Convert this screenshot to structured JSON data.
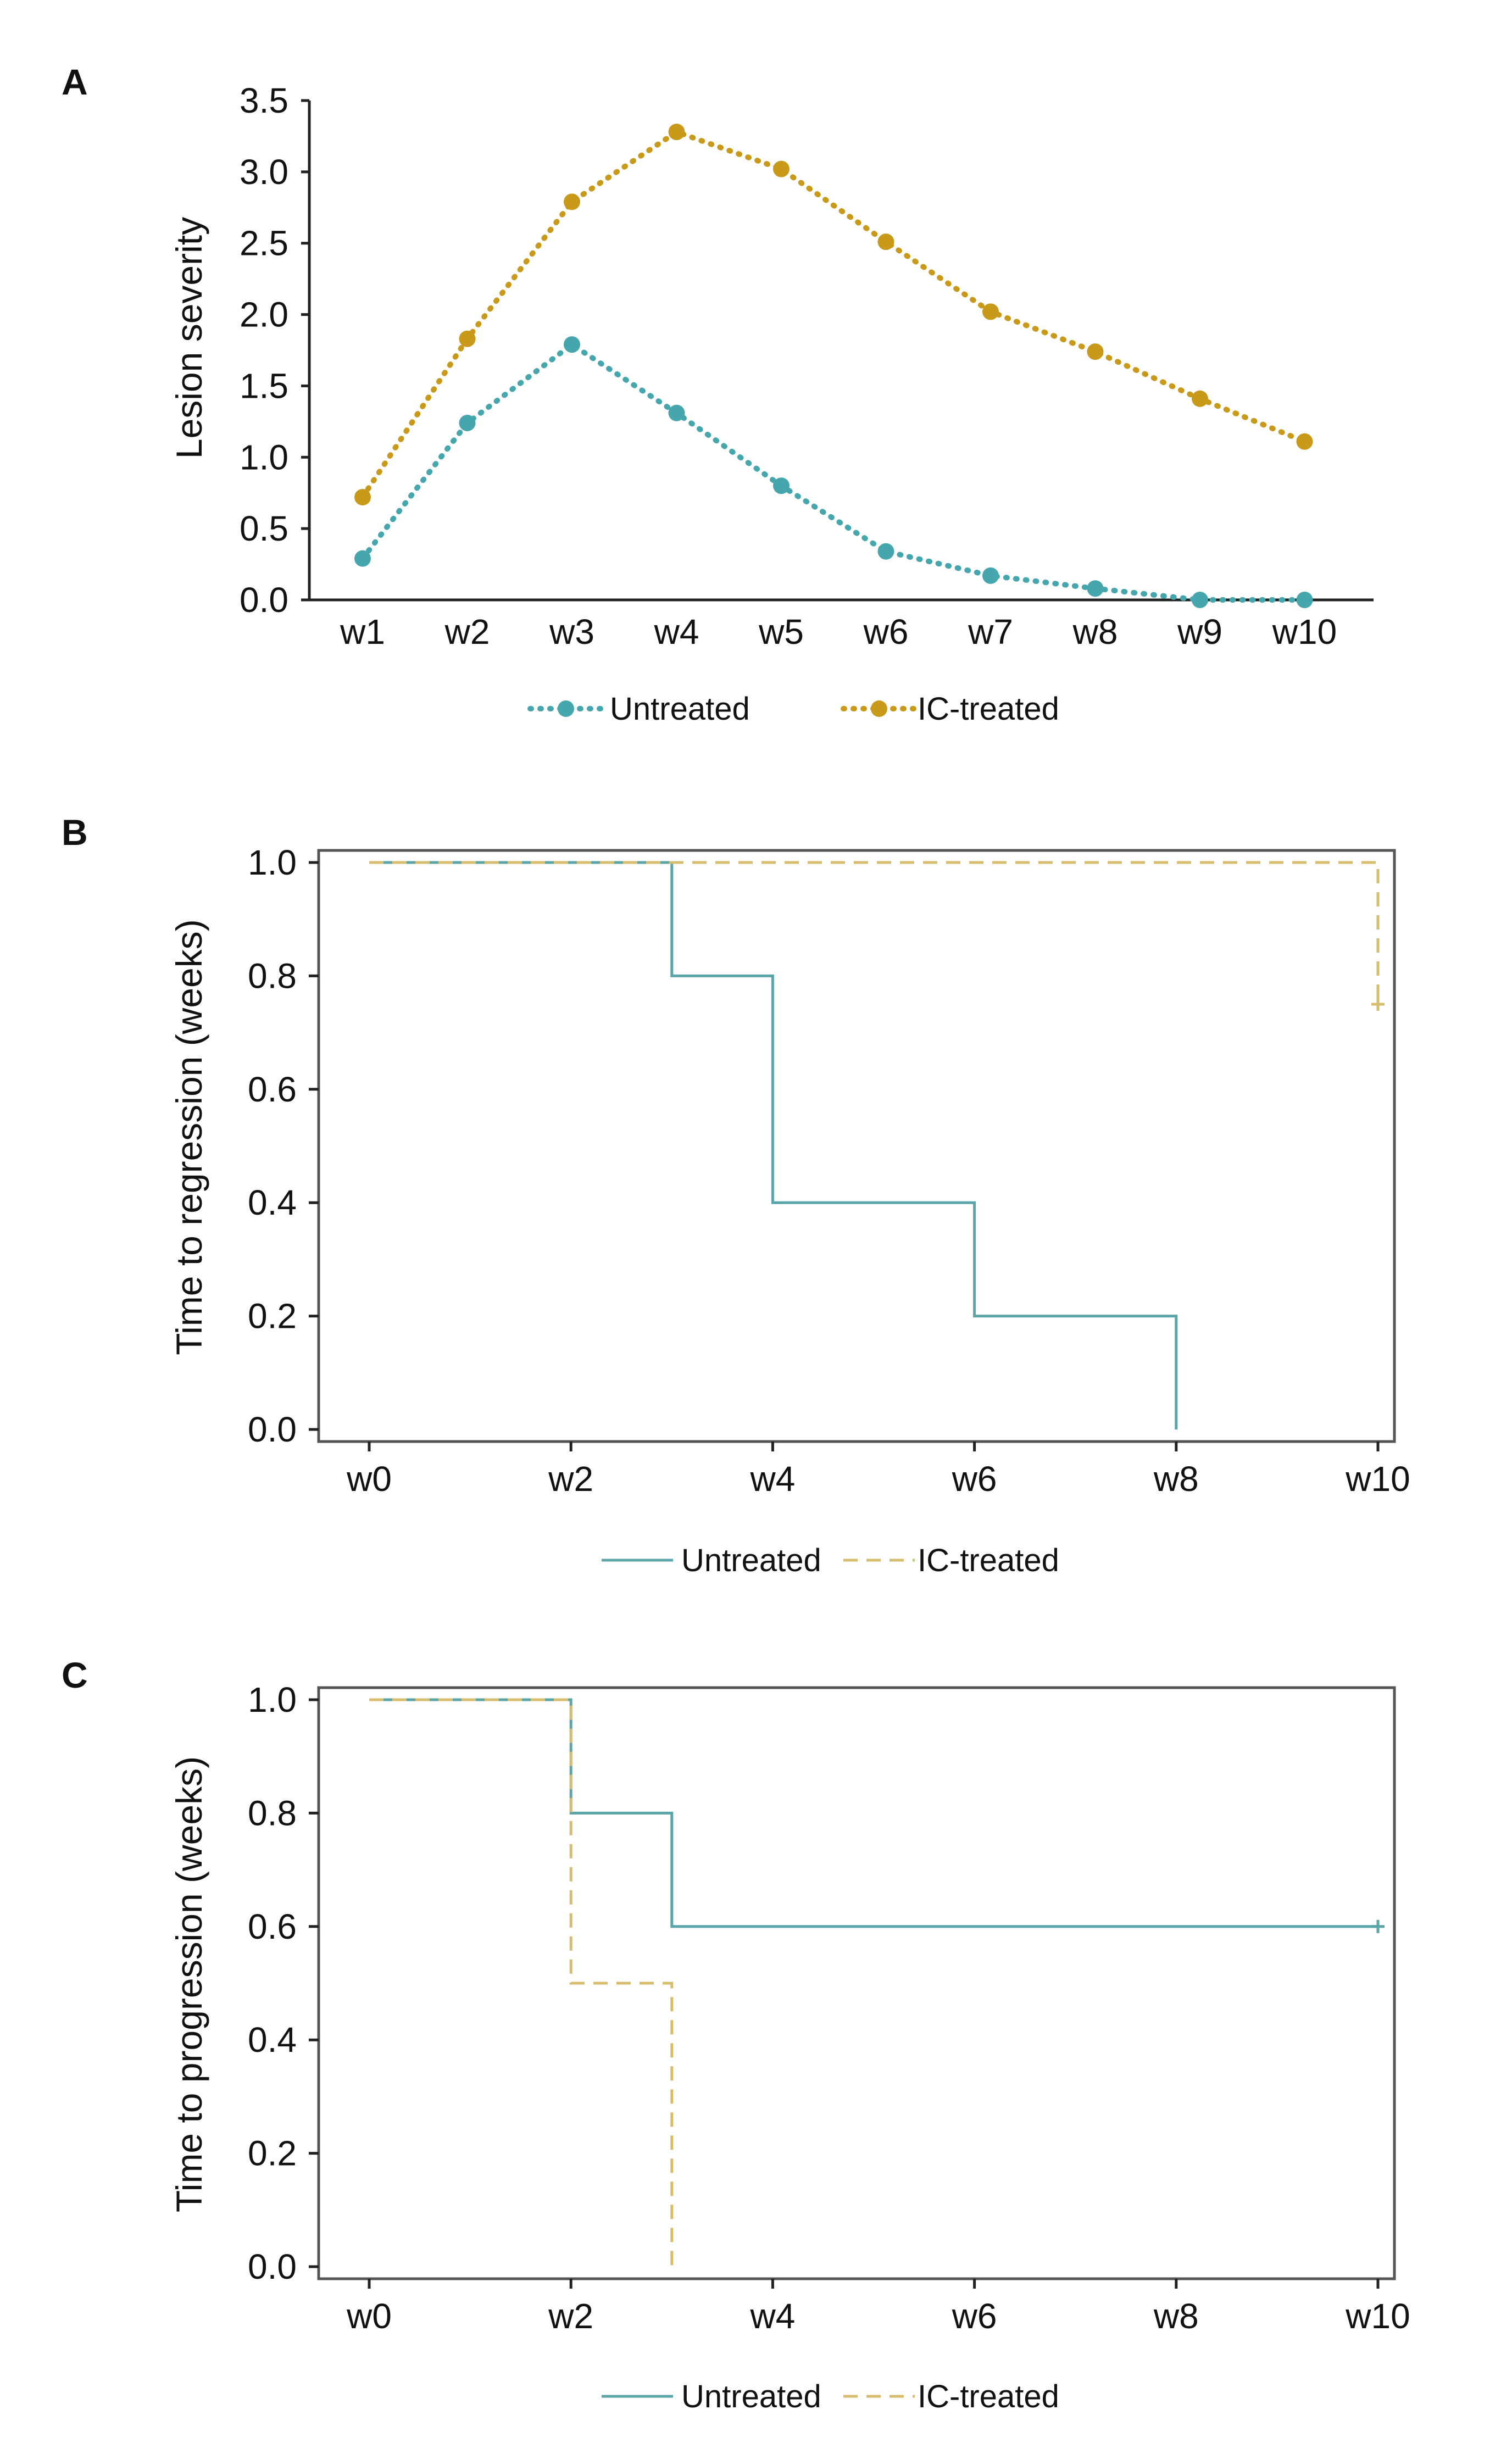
{
  "colors": {
    "untreated": "#45a7ad",
    "ic_treated": "#c99a1a",
    "untreated_km": "#5aa5a8",
    "ic_treated_km": "#d8bc6e",
    "axis": "#222222",
    "frame": "#555555"
  },
  "chart_data": [
    {
      "id": "A",
      "panel_label": "A",
      "type": "line",
      "categories": [
        "w1",
        "w2",
        "w3",
        "w4",
        "w5",
        "w6",
        "w7",
        "w8",
        "w9",
        "w10"
      ],
      "series": [
        {
          "name": "Untreated",
          "values": [
            0.29,
            1.24,
            1.79,
            1.31,
            0.8,
            0.34,
            0.17,
            0.08,
            0.0,
            0.0
          ]
        },
        {
          "name": "IC-treated",
          "values": [
            0.72,
            1.83,
            2.79,
            3.28,
            3.02,
            2.51,
            2.02,
            1.74,
            1.41,
            1.11
          ]
        }
      ],
      "ylabel": "Lesion severity",
      "xlabel": "",
      "ylim": [
        0,
        3.5
      ],
      "yticks": [
        "0.0",
        "0.5",
        "1.0",
        "1.5",
        "2.0",
        "2.5",
        "3.0",
        "3.5"
      ],
      "legend": [
        "Untreated",
        "IC-treated"
      ],
      "legend_position": "bottom"
    },
    {
      "id": "B",
      "panel_label": "B",
      "type": "line",
      "subtype": "step (Kaplan-Meier)",
      "xticks": [
        "w0",
        "w2",
        "w4",
        "w6",
        "w8",
        "w10"
      ],
      "xlim": [
        0,
        10
      ],
      "series": [
        {
          "name": "Untreated",
          "x": [
            0,
            3,
            3,
            4,
            4,
            6,
            6,
            8,
            8
          ],
          "y": [
            1.0,
            1.0,
            0.8,
            0.8,
            0.4,
            0.4,
            0.2,
            0.2,
            0.0
          ]
        },
        {
          "name": "IC-treated",
          "x": [
            0,
            10,
            10
          ],
          "y": [
            1.0,
            1.0,
            0.75
          ],
          "censor": [
            [
              10,
              0.75
            ]
          ]
        }
      ],
      "ylabel": "Time to regression (weeks)",
      "ylim": [
        0,
        1.0
      ],
      "yticks": [
        "0.0",
        "0.2",
        "0.4",
        "0.6",
        "0.8",
        "1.0"
      ],
      "legend": [
        "Untreated",
        "IC-treated"
      ],
      "legend_position": "bottom"
    },
    {
      "id": "C",
      "panel_label": "C",
      "type": "line",
      "subtype": "step (Kaplan-Meier)",
      "xticks": [
        "w0",
        "w2",
        "w4",
        "w6",
        "w8",
        "w10"
      ],
      "xlim": [
        0,
        10
      ],
      "series": [
        {
          "name": "Untreated",
          "x": [
            0,
            2,
            2,
            3,
            3,
            10
          ],
          "y": [
            1.0,
            1.0,
            0.8,
            0.8,
            0.6,
            0.6
          ],
          "censor": [
            [
              10,
              0.6
            ]
          ]
        },
        {
          "name": "IC-treated",
          "x": [
            0,
            2,
            2,
            3,
            3
          ],
          "y": [
            1.0,
            1.0,
            0.5,
            0.5,
            0.0
          ]
        }
      ],
      "ylabel": "Time to progression (weeks)",
      "ylim": [
        0,
        1.0
      ],
      "yticks": [
        "0.0",
        "0.2",
        "0.4",
        "0.6",
        "0.8",
        "1.0"
      ],
      "legend": [
        "Untreated",
        "IC-treated"
      ],
      "legend_position": "bottom"
    }
  ]
}
